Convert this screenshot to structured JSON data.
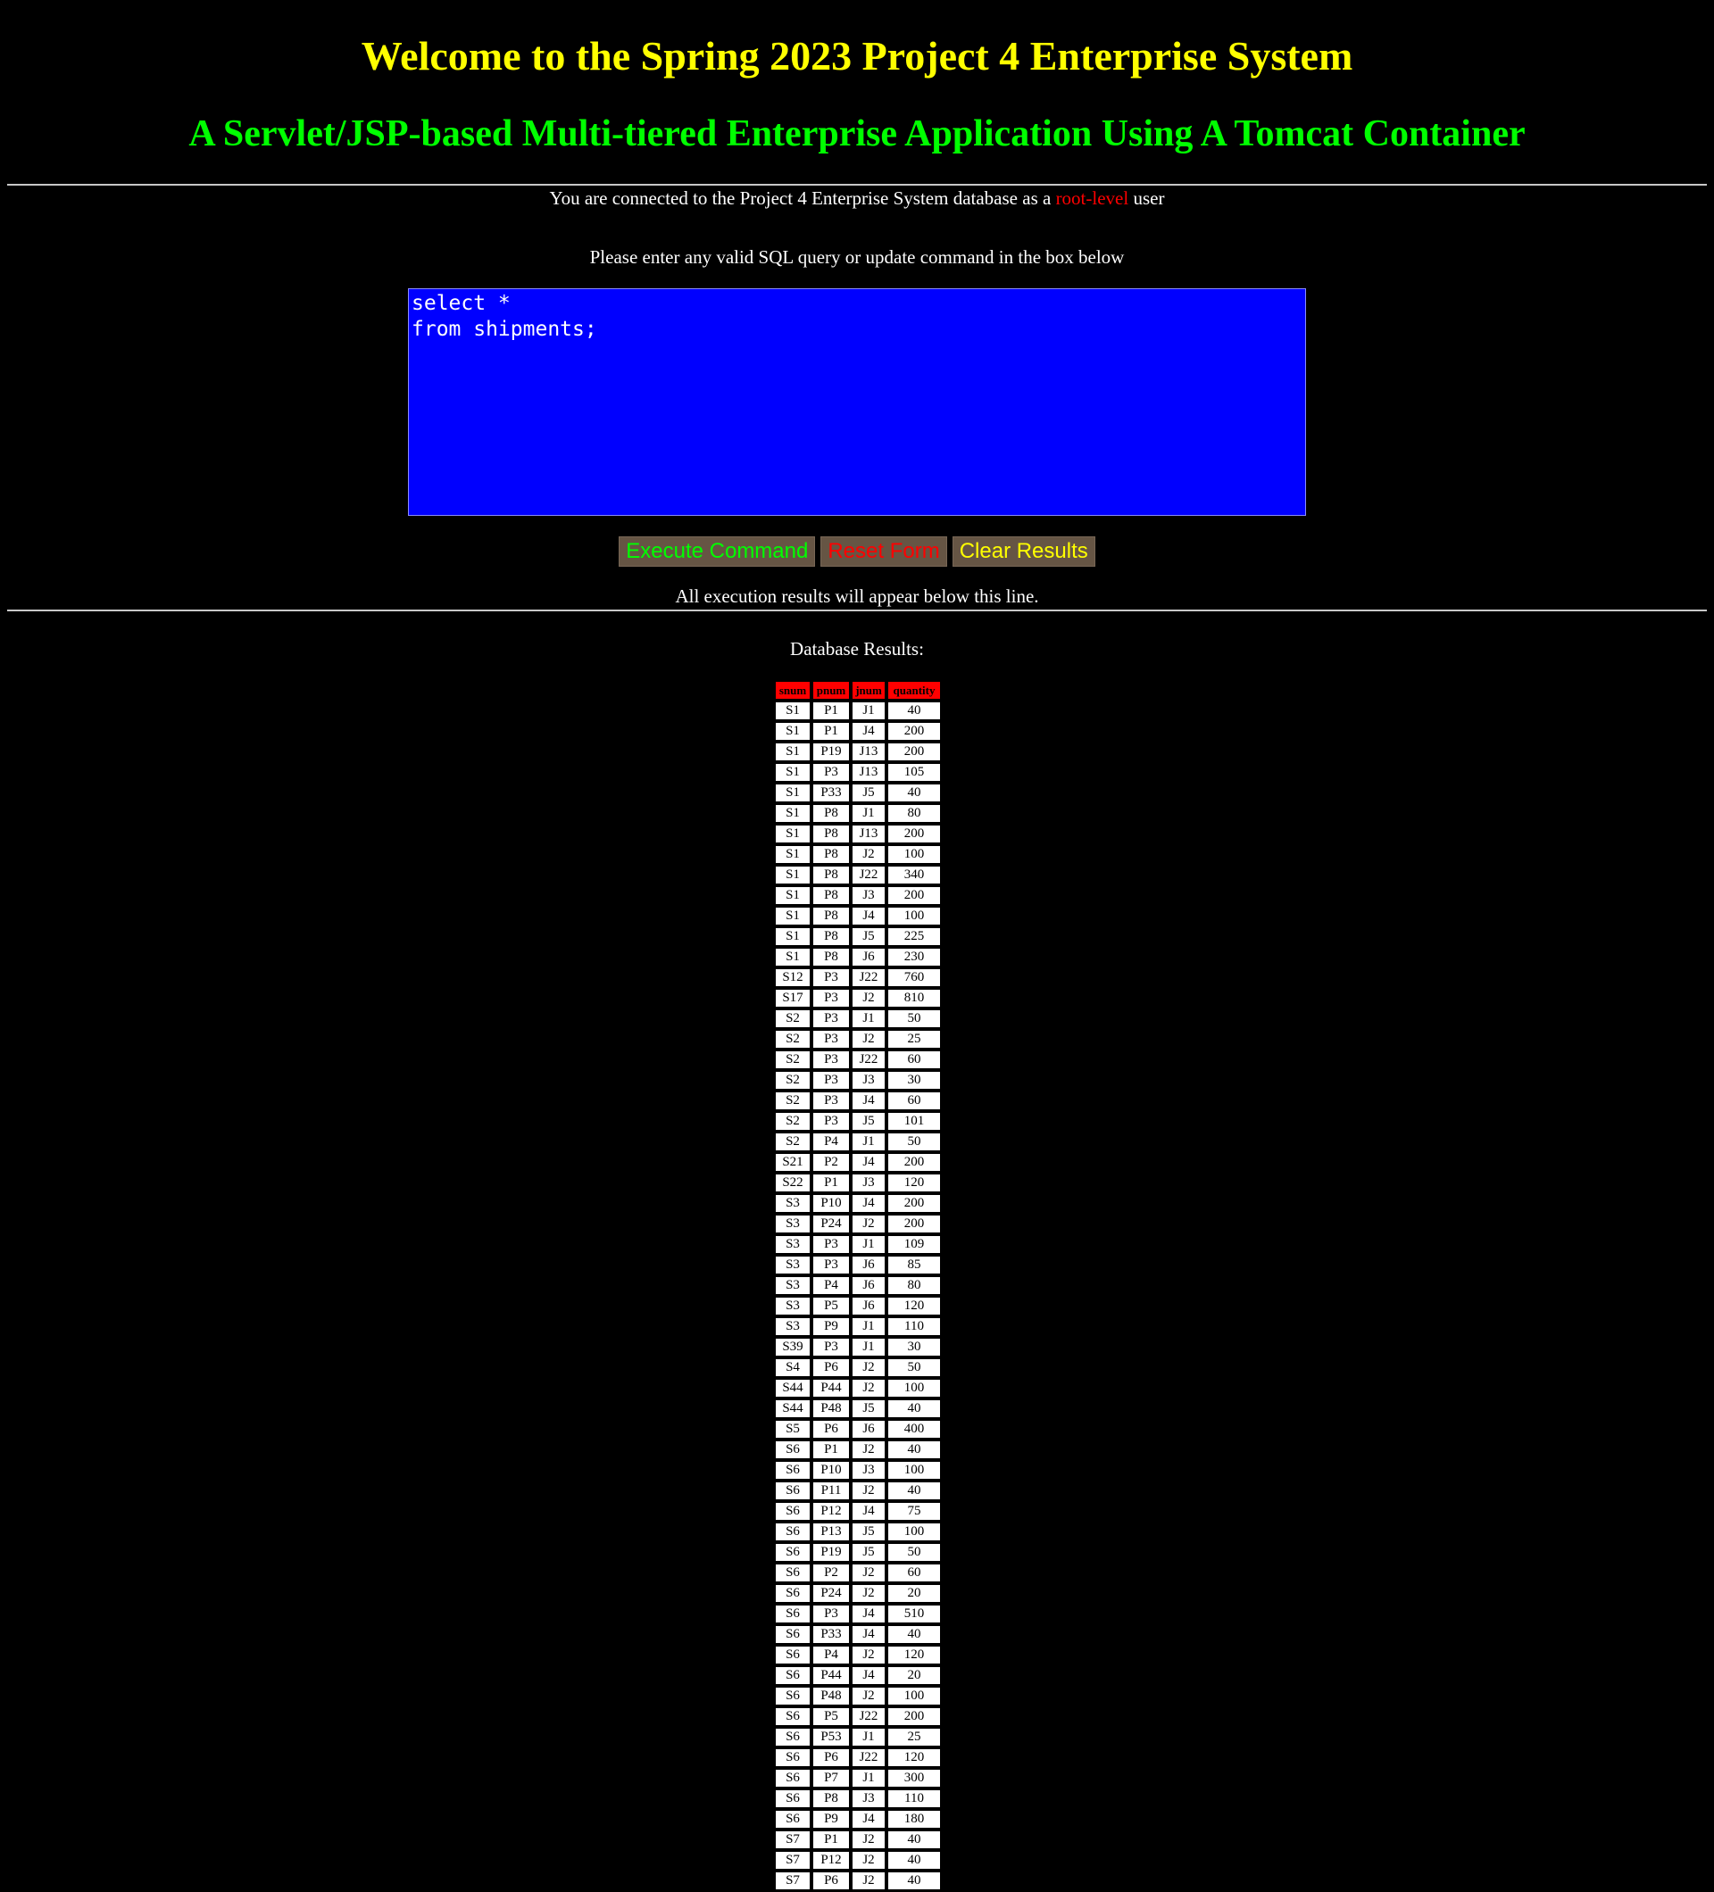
{
  "header": {
    "title": "Welcome to the Spring 2023 Project 4 Enterprise System",
    "subtitle": "A Servlet/JSP-based Multi-tiered Enterprise Application Using A Tomcat Container"
  },
  "connection": {
    "prefix": "You are connected to the Project 4 Enterprise System database as a ",
    "role": "root-level",
    "suffix": " user"
  },
  "query": {
    "prompt": "Please enter any valid SQL query or update command in the box below",
    "text": "select *\nfrom shipments;"
  },
  "buttons": {
    "execute": "Execute Command",
    "reset": "Reset Form",
    "clear": "Clear Results"
  },
  "results": {
    "below_line_text": "All execution results will appear below this line.",
    "heading": "Database Results:",
    "columns": [
      "snum",
      "pnum",
      "jnum",
      "quantity"
    ],
    "rows": [
      [
        "S1",
        "P1",
        "J1",
        "40"
      ],
      [
        "S1",
        "P1",
        "J4",
        "200"
      ],
      [
        "S1",
        "P19",
        "J13",
        "200"
      ],
      [
        "S1",
        "P3",
        "J13",
        "105"
      ],
      [
        "S1",
        "P33",
        "J5",
        "40"
      ],
      [
        "S1",
        "P8",
        "J1",
        "80"
      ],
      [
        "S1",
        "P8",
        "J13",
        "200"
      ],
      [
        "S1",
        "P8",
        "J2",
        "100"
      ],
      [
        "S1",
        "P8",
        "J22",
        "340"
      ],
      [
        "S1",
        "P8",
        "J3",
        "200"
      ],
      [
        "S1",
        "P8",
        "J4",
        "100"
      ],
      [
        "S1",
        "P8",
        "J5",
        "225"
      ],
      [
        "S1",
        "P8",
        "J6",
        "230"
      ],
      [
        "S12",
        "P3",
        "J22",
        "760"
      ],
      [
        "S17",
        "P3",
        "J2",
        "810"
      ],
      [
        "S2",
        "P3",
        "J1",
        "50"
      ],
      [
        "S2",
        "P3",
        "J2",
        "25"
      ],
      [
        "S2",
        "P3",
        "J22",
        "60"
      ],
      [
        "S2",
        "P3",
        "J3",
        "30"
      ],
      [
        "S2",
        "P3",
        "J4",
        "60"
      ],
      [
        "S2",
        "P3",
        "J5",
        "101"
      ],
      [
        "S2",
        "P4",
        "J1",
        "50"
      ],
      [
        "S21",
        "P2",
        "J4",
        "200"
      ],
      [
        "S22",
        "P1",
        "J3",
        "120"
      ],
      [
        "S3",
        "P10",
        "J4",
        "200"
      ],
      [
        "S3",
        "P24",
        "J2",
        "200"
      ],
      [
        "S3",
        "P3",
        "J1",
        "109"
      ],
      [
        "S3",
        "P3",
        "J6",
        "85"
      ],
      [
        "S3",
        "P4",
        "J6",
        "80"
      ],
      [
        "S3",
        "P5",
        "J6",
        "120"
      ],
      [
        "S3",
        "P9",
        "J1",
        "110"
      ],
      [
        "S39",
        "P3",
        "J1",
        "30"
      ],
      [
        "S4",
        "P6",
        "J2",
        "50"
      ],
      [
        "S44",
        "P44",
        "J2",
        "100"
      ],
      [
        "S44",
        "P48",
        "J5",
        "40"
      ],
      [
        "S5",
        "P6",
        "J6",
        "400"
      ],
      [
        "S6",
        "P1",
        "J2",
        "40"
      ],
      [
        "S6",
        "P10",
        "J3",
        "100"
      ],
      [
        "S6",
        "P11",
        "J2",
        "40"
      ],
      [
        "S6",
        "P12",
        "J4",
        "75"
      ],
      [
        "S6",
        "P13",
        "J5",
        "100"
      ],
      [
        "S6",
        "P19",
        "J5",
        "50"
      ],
      [
        "S6",
        "P2",
        "J2",
        "60"
      ],
      [
        "S6",
        "P24",
        "J2",
        "20"
      ],
      [
        "S6",
        "P3",
        "J4",
        "510"
      ],
      [
        "S6",
        "P33",
        "J4",
        "40"
      ],
      [
        "S6",
        "P4",
        "J2",
        "120"
      ],
      [
        "S6",
        "P44",
        "J4",
        "20"
      ],
      [
        "S6",
        "P48",
        "J2",
        "100"
      ],
      [
        "S6",
        "P5",
        "J22",
        "200"
      ],
      [
        "S6",
        "P53",
        "J1",
        "25"
      ],
      [
        "S6",
        "P6",
        "J22",
        "120"
      ],
      [
        "S6",
        "P7",
        "J1",
        "300"
      ],
      [
        "S6",
        "P8",
        "J3",
        "110"
      ],
      [
        "S6",
        "P9",
        "J4",
        "180"
      ],
      [
        "S7",
        "P1",
        "J2",
        "40"
      ],
      [
        "S7",
        "P12",
        "J2",
        "40"
      ],
      [
        "S7",
        "P6",
        "J2",
        "40"
      ]
    ]
  },
  "colors": {
    "background": "#000000",
    "title": "#ffff00",
    "subtitle": "#00ff00",
    "role": "#ff0000",
    "query_box": "#0000ff",
    "button_bg": "#665544",
    "table_header": "#ff0000"
  }
}
